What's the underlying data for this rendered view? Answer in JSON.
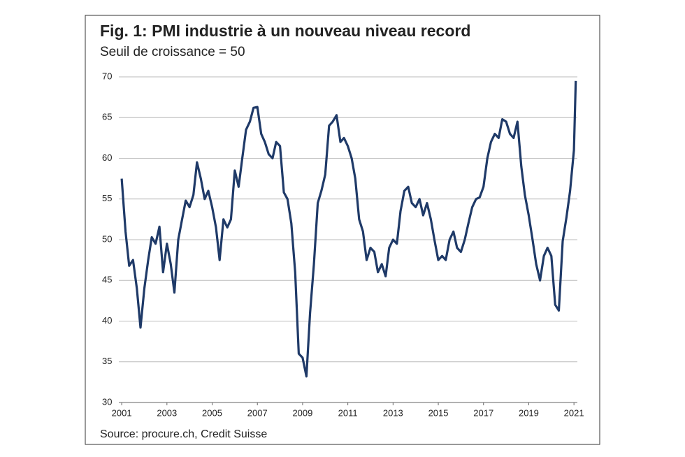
{
  "chart_data": {
    "type": "line",
    "title": "Fig. 1: PMI industrie à un nouveau niveau record",
    "subtitle": "Seuil de croissance = 50",
    "source": "Source: procure.ch, Credit Suisse",
    "xlim": [
      2000.1,
      2021.15
    ],
    "xticks": [
      2001,
      2003,
      2005,
      2007,
      2009,
      2011,
      2013,
      2015,
      2017,
      2019,
      2021
    ],
    "ylim": [
      30,
      70
    ],
    "yticks": [
      30,
      35,
      40,
      45,
      50,
      55,
      60,
      65,
      70
    ],
    "grid": true,
    "series": [
      {
        "name": "PMI",
        "color": "#1f3a68",
        "x": [
          2001,
          2001.17,
          2001.33,
          2001.5,
          2001.67,
          2001.83,
          2002,
          2002.17,
          2002.33,
          2002.5,
          2002.67,
          2002.83,
          2003,
          2003.17,
          2003.33,
          2003.5,
          2003.67,
          2003.83,
          2004,
          2004.17,
          2004.33,
          2004.5,
          2004.67,
          2004.83,
          2005,
          2005.17,
          2005.33,
          2005.5,
          2005.67,
          2005.83,
          2006,
          2006.17,
          2006.33,
          2006.5,
          2006.67,
          2006.83,
          2007,
          2007.17,
          2007.33,
          2007.5,
          2007.67,
          2007.83,
          2008,
          2008.17,
          2008.33,
          2008.5,
          2008.67,
          2008.83,
          2009,
          2009.17,
          2009.33,
          2009.5,
          2009.67,
          2009.83,
          2010,
          2010.17,
          2010.33,
          2010.5,
          2010.67,
          2010.83,
          2011,
          2011.17,
          2011.33,
          2011.5,
          2011.67,
          2011.83,
          2012,
          2012.17,
          2012.33,
          2012.5,
          2012.67,
          2012.83,
          2013,
          2013.17,
          2013.33,
          2013.5,
          2013.67,
          2013.83,
          2014,
          2014.17,
          2014.33,
          2014.5,
          2014.67,
          2014.83,
          2015,
          2015.17,
          2015.33,
          2015.5,
          2015.67,
          2015.83,
          2016,
          2016.17,
          2016.33,
          2016.5,
          2016.67,
          2016.83,
          2017,
          2017.17,
          2017.33,
          2017.5,
          2017.67,
          2017.83,
          2018,
          2018.17,
          2018.33,
          2018.5,
          2018.67,
          2018.83,
          2019,
          2019.17,
          2019.33,
          2019.5,
          2019.67,
          2019.83,
          2020,
          2020.17,
          2020.33,
          2020.5,
          2020.67,
          2020.83,
          2021,
          2021.08
        ],
        "values": [
          57.5,
          51,
          46.8,
          47.5,
          44,
          39.2,
          44,
          47.5,
          50.3,
          49.5,
          51.6,
          46,
          49.5,
          47,
          43.5,
          50,
          52.5,
          54.8,
          54,
          55.5,
          59.5,
          57.5,
          55,
          56,
          54,
          51.5,
          47.5,
          52.5,
          51.5,
          52.5,
          58.5,
          56.5,
          60,
          63.5,
          64.5,
          66.2,
          66.3,
          63,
          62,
          60.5,
          60,
          62,
          61.5,
          55.8,
          55,
          52,
          46,
          36,
          35.5,
          33.2,
          41,
          47,
          54.5,
          56,
          58,
          64,
          64.5,
          65.3,
          62,
          62.5,
          61.5,
          60,
          57.5,
          52.5,
          51,
          47.5,
          49,
          48.5,
          46,
          47,
          45.5,
          49,
          50,
          49.5,
          53.5,
          56,
          56.5,
          54.5,
          54,
          55,
          53,
          54.5,
          52.5,
          50,
          47.5,
          48,
          47.5,
          50,
          51,
          49,
          48.5,
          50,
          52,
          54,
          55,
          55.2,
          56.5,
          60,
          62,
          63,
          62.5,
          64.8,
          64.5,
          63,
          62.5,
          64.5,
          59,
          55.5,
          53,
          50,
          47,
          45,
          48,
          49,
          48,
          42,
          41.3,
          49.8,
          52.8,
          56,
          61,
          69.5
        ]
      }
    ]
  }
}
